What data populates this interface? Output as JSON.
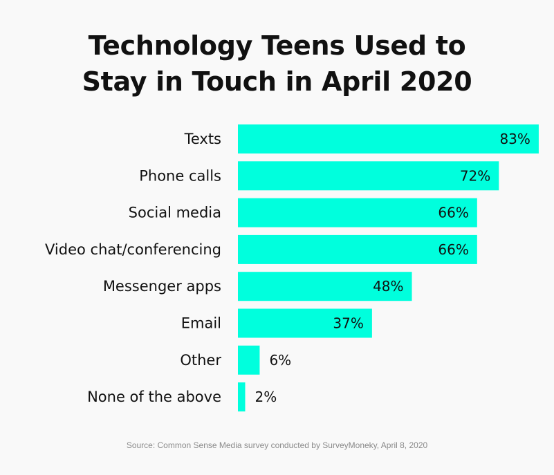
{
  "chart_data": {
    "type": "bar",
    "orientation": "horizontal",
    "title_lines": [
      "Technology Teens Used to",
      "Stay in Touch in April 2020"
    ],
    "categories": [
      "Texts",
      "Phone calls",
      "Social media",
      "Video chat/conferencing",
      "Messenger apps",
      "Email",
      "Other",
      "None of the above"
    ],
    "values": [
      83,
      72,
      66,
      66,
      48,
      37,
      6,
      2
    ],
    "value_labels": [
      "83%",
      "72%",
      "66%",
      "66%",
      "48%",
      "37%",
      "6%",
      "2%"
    ],
    "unit": "%",
    "bar_color": "#00ffdd",
    "grid": false,
    "legend": "none"
  },
  "source": "Source: Common Sense Media survey conducted by SurveyMoneky, April 8, 2020"
}
